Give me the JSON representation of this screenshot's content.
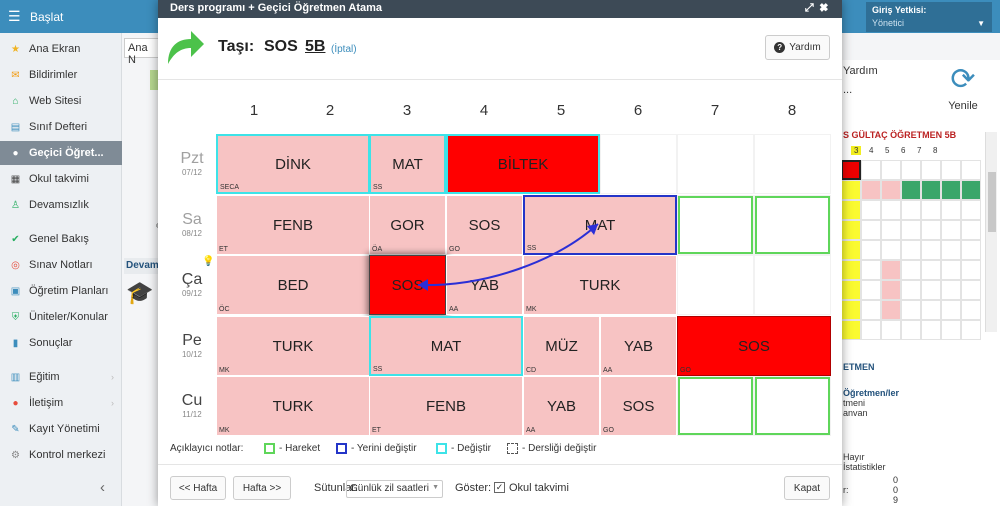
{
  "topbar": {
    "home_label": "Başlat",
    "login_title": "Giriş Yetkisi:",
    "login_role": "Yönetici"
  },
  "sidebar": {
    "items": [
      {
        "label": "Ana Ekran",
        "icon": "star-icon",
        "color": "#f0b323"
      },
      {
        "label": "Bildirimler",
        "icon": "envelope-icon",
        "color": "#f39c12"
      },
      {
        "label": "Web Sitesi",
        "icon": "home-icon",
        "color": "#27ae60"
      },
      {
        "label": "Sınıf Defteri",
        "icon": "book-icon",
        "color": "#3c8dbc"
      },
      {
        "label": "Geçici Öğret...",
        "icon": "user-icon",
        "color": "#ffffff",
        "active": true
      },
      {
        "label": "Okul takvimi",
        "icon": "calendar-icon",
        "color": "#444444"
      },
      {
        "label": "Devamsızlık",
        "icon": "person-icon",
        "color": "#27ae60"
      },
      {
        "label": "Genel Bakış",
        "icon": "check-circle-icon",
        "color": "#27ae60"
      },
      {
        "label": "Sınav Notları",
        "icon": "target-icon",
        "color": "#e74c3c"
      },
      {
        "label": "Öğretim Planları",
        "icon": "briefcase-icon",
        "color": "#3c8dbc"
      },
      {
        "label": "Üniteler/Konular",
        "icon": "shield-icon",
        "color": "#27ae60"
      },
      {
        "label": "Sonuçlar",
        "icon": "bar-chart-icon",
        "color": "#3c8dbc"
      },
      {
        "label": "Eğitim",
        "icon": "education-icon",
        "color": "#3c8dbc",
        "chevron": true
      },
      {
        "label": "İletişim",
        "icon": "chat-icon",
        "color": "#e74c3c",
        "chevron": true
      },
      {
        "label": "Kayıt Yönetimi",
        "icon": "pen-icon",
        "color": "#3c8dbc"
      },
      {
        "label": "Kontrol merkezi",
        "icon": "gear-icon",
        "color": "#888888"
      }
    ]
  },
  "background": {
    "tab_label": "Ana N",
    "yardim": "Yardım",
    "dots": "...",
    "yenile": "Yenile",
    "strip_title": "S GÜLTAÇ ÖĞRETMEN 5B",
    "strip_nums": [
      "3",
      "4",
      "5",
      "6",
      "7",
      "8"
    ],
    "devam": "Devam",
    "texts": [
      "ETMEN",
      "Öğretmen/ler",
      "tmeni",
      "anvan",
      "Hayır",
      "İstatistikler",
      "r:",
      "0",
      "0",
      "9"
    ]
  },
  "modal": {
    "header_title": "Ders programı + Geçici Öğretmen Atama",
    "title_label": "Taşı:",
    "title_subject": "SOS",
    "title_class": "5B",
    "title_cancel": "(İptal)",
    "help_label": "Yardım"
  },
  "timetable": {
    "periods": [
      "1",
      "2",
      "3",
      "4",
      "5",
      "6",
      "7",
      "8"
    ],
    "days": [
      {
        "name": "Pzt",
        "date": "07/12",
        "pale": true
      },
      {
        "name": "Sa",
        "date": "08/12",
        "pale": true
      },
      {
        "name": "Ça",
        "date": "09/12",
        "pale": false
      },
      {
        "name": "Pe",
        "date": "10/12",
        "pale": false
      },
      {
        "name": "Cu",
        "date": "11/12",
        "pale": false
      }
    ],
    "lessons": [
      {
        "day": 0,
        "start": 0,
        "span": 2,
        "subject": "DİNK",
        "teacher": "SECA",
        "style": "cyan"
      },
      {
        "day": 0,
        "start": 2,
        "span": 1,
        "subject": "MAT",
        "teacher": "SS",
        "style": "cyan"
      },
      {
        "day": 0,
        "start": 3,
        "span": 2,
        "subject": "BİLTEK",
        "teacher": "",
        "style": "red-cyan"
      },
      {
        "day": 1,
        "start": 0,
        "span": 2,
        "subject": "FENB",
        "teacher": "ET",
        "style": "normal"
      },
      {
        "day": 1,
        "start": 2,
        "span": 1,
        "subject": "GOR",
        "teacher": "ÖA",
        "style": "normal"
      },
      {
        "day": 1,
        "start": 3,
        "span": 1,
        "subject": "SOS",
        "teacher": "GO",
        "style": "normal"
      },
      {
        "day": 1,
        "start": 4,
        "span": 2,
        "subject": "MAT",
        "teacher": "SS",
        "style": "blue"
      },
      {
        "day": 2,
        "start": 0,
        "span": 2,
        "subject": "BED",
        "teacher": "ÖC",
        "style": "normal"
      },
      {
        "day": 2,
        "start": 2,
        "span": 1,
        "subject": "SOS",
        "teacher": "",
        "style": "selected"
      },
      {
        "day": 2,
        "start": 3,
        "span": 1,
        "subject": "YAB",
        "teacher": "AA",
        "style": "normal"
      },
      {
        "day": 2,
        "start": 4,
        "span": 2,
        "subject": "TURK",
        "teacher": "MK",
        "style": "normal"
      },
      {
        "day": 3,
        "start": 0,
        "span": 2,
        "subject": "TURK",
        "teacher": "MK",
        "style": "normal"
      },
      {
        "day": 3,
        "start": 2,
        "span": 2,
        "subject": "MAT",
        "teacher": "SS",
        "style": "cyan"
      },
      {
        "day": 3,
        "start": 4,
        "span": 1,
        "subject": "MÜZ",
        "teacher": "CD",
        "style": "normal"
      },
      {
        "day": 3,
        "start": 5,
        "span": 1,
        "subject": "YAB",
        "teacher": "AA",
        "style": "normal"
      },
      {
        "day": 3,
        "start": 6,
        "span": 2,
        "subject": "SOS",
        "teacher": "GO",
        "style": "red"
      },
      {
        "day": 4,
        "start": 0,
        "span": 2,
        "subject": "TURK",
        "teacher": "MK",
        "style": "normal"
      },
      {
        "day": 4,
        "start": 2,
        "span": 2,
        "subject": "FENB",
        "teacher": "ET",
        "style": "normal"
      },
      {
        "day": 4,
        "start": 4,
        "span": 1,
        "subject": "YAB",
        "teacher": "AA",
        "style": "normal"
      },
      {
        "day": 4,
        "start": 5,
        "span": 1,
        "subject": "SOS",
        "teacher": "GO",
        "style": "normal"
      }
    ],
    "move_slots": [
      {
        "day": 1,
        "start": 6
      },
      {
        "day": 1,
        "start": 7
      },
      {
        "day": 4,
        "start": 6
      },
      {
        "day": 4,
        "start": 7
      }
    ]
  },
  "legend": {
    "title": "Açıklayıcı notlar:",
    "items": [
      {
        "label": "- Hareket",
        "color": "#5fd65a",
        "dashed": false
      },
      {
        "label": "- Yerini değiştir",
        "color": "#2435c8",
        "dashed": false
      },
      {
        "label": "- Değiştir",
        "color": "#3de3e8",
        "dashed": false
      },
      {
        "label": "- Dersliği değiştir",
        "color": "#555555",
        "dashed": true
      }
    ]
  },
  "footer": {
    "prev_week": "<< Hafta",
    "next_week": "Hafta >>",
    "columns_label": "Sütunlar:",
    "columns_value": "Günlük zil saatleri",
    "show_label": "Göster:",
    "calendar_checkbox": "Okul takvimi",
    "close": "Kapat"
  }
}
